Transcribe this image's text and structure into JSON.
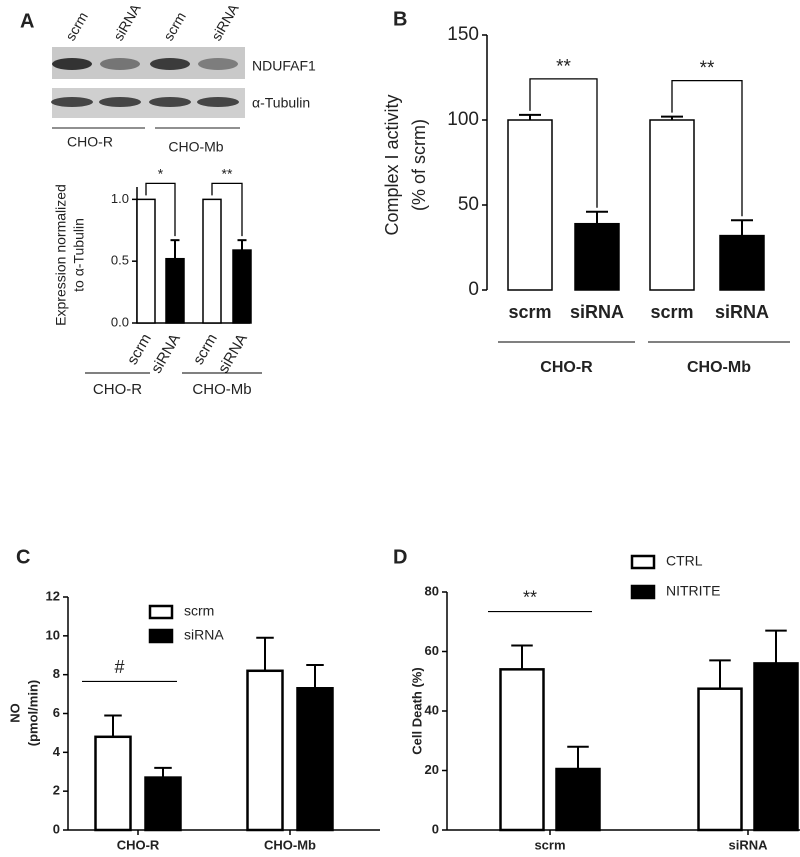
{
  "chart_data": [
    {
      "type": "bar",
      "panel_label": "A",
      "blot": {
        "lanes": [
          "scrm",
          "siRNA",
          "scrm",
          "siRNA"
        ],
        "bands": [
          "NDUFAF1",
          "α-Tubulin"
        ],
        "groups": [
          "CHO-R",
          "CHO-Mb"
        ]
      },
      "ylabel": [
        "Expression normalized",
        "to α-Tubulin"
      ],
      "categories": [
        "scrm",
        "siRNA",
        "scrm",
        "siRNA"
      ],
      "groups": [
        "CHO-R",
        "CHO-Mb"
      ],
      "values": [
        1.0,
        0.52,
        1.0,
        0.59
      ],
      "errors": [
        null,
        0.15,
        null,
        0.08
      ],
      "colors": [
        "#ffffff",
        "#000000",
        "#ffffff",
        "#000000"
      ],
      "ylim": [
        0,
        1.1
      ],
      "yticks": [
        {
          "value": 0,
          "label": "0.0"
        },
        0.5,
        {
          "value": 1,
          "label": "1.0"
        }
      ],
      "annotations": [
        "*",
        "**"
      ]
    },
    {
      "type": "bar",
      "panel_label": "B",
      "ylabel": [
        "Complex I activity",
        "(% of scrm)"
      ],
      "categories": [
        "scrm",
        "siRNA",
        "scrm",
        "siRNA"
      ],
      "groups": [
        "CHO-R",
        "CHO-Mb"
      ],
      "values": [
        100,
        39,
        100,
        32
      ],
      "errors": [
        3,
        7,
        2,
        9
      ],
      "colors": [
        "#ffffff",
        "#000000",
        "#ffffff",
        "#000000"
      ],
      "ylim": [
        0,
        150
      ],
      "yticks": [
        0,
        50,
        100,
        150
      ],
      "annotations": [
        "**",
        "**"
      ]
    },
    {
      "type": "grouped_bar",
      "panel_label": "C",
      "ylabel": [
        "NO",
        "(pmol/min)"
      ],
      "categories": [
        "CHO-R",
        "CHO-Mb"
      ],
      "series": [
        {
          "name": "scrm",
          "color": "#ffffff",
          "values": [
            4.8,
            8.2
          ],
          "errors": [
            1.1,
            1.7
          ]
        },
        {
          "name": "siRNA",
          "color": "#000000",
          "values": [
            2.7,
            7.3
          ],
          "errors": [
            0.5,
            1.2
          ]
        }
      ],
      "ylim": [
        0,
        12
      ],
      "yticks": [
        0,
        2,
        4,
        6,
        8,
        10,
        12
      ],
      "legend": "upper center",
      "annotations": [
        "#"
      ]
    },
    {
      "type": "grouped_bar",
      "panel_label": "D",
      "ylabel": [
        "Cell Death (%)"
      ],
      "categories": [
        "scrm",
        "siRNA"
      ],
      "series": [
        {
          "name": "CTRL",
          "color": "#ffffff",
          "values": [
            54,
            47.5
          ],
          "errors": [
            8,
            9.5
          ]
        },
        {
          "name": "NITRITE",
          "color": "#000000",
          "values": [
            20.5,
            56
          ],
          "errors": [
            7.5,
            11
          ]
        }
      ],
      "ylim": [
        0,
        80
      ],
      "yticks": [
        0,
        20,
        40,
        60,
        80
      ],
      "legend": "upper center",
      "annotations": [
        "**"
      ]
    }
  ]
}
